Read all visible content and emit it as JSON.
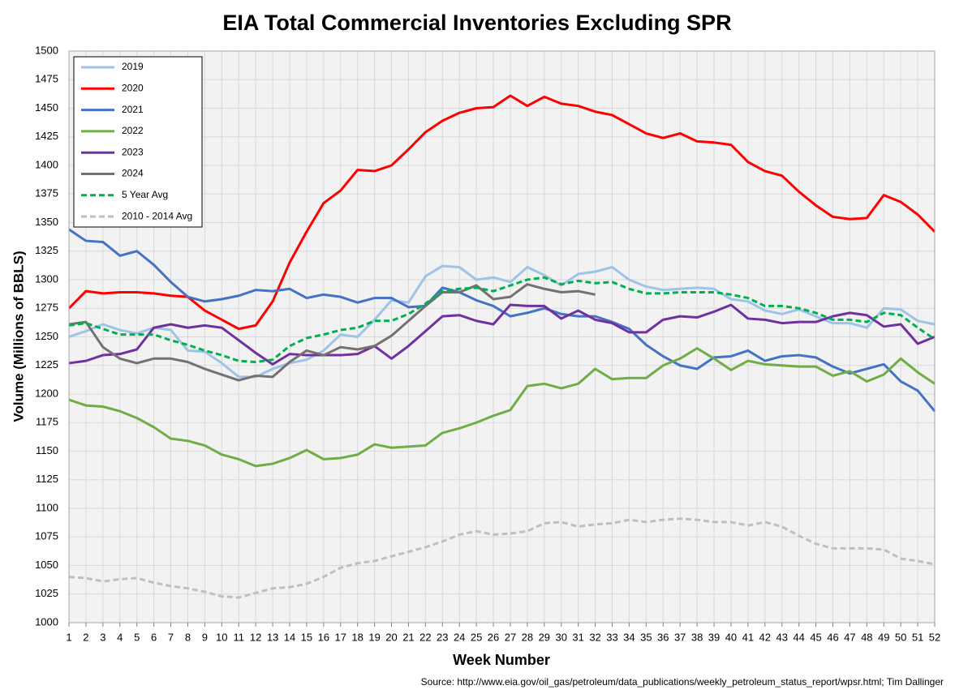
{
  "chart_data": {
    "type": "line",
    "title": "EIA Total Commercial Inventories Excluding SPR",
    "xlabel": "Week Number",
    "ylabel": "Volume (Millions of BBLS)",
    "source": "Source: http://www.eia.gov/oil_gas/petroleum/data_publications/weekly_petroleum_status_report/wpsr.html; Tim Dallinger",
    "x": [
      1,
      2,
      3,
      4,
      5,
      6,
      7,
      8,
      9,
      10,
      11,
      12,
      13,
      14,
      15,
      16,
      17,
      18,
      19,
      20,
      21,
      22,
      23,
      24,
      25,
      26,
      27,
      28,
      29,
      30,
      31,
      32,
      33,
      34,
      35,
      36,
      37,
      38,
      39,
      40,
      41,
      42,
      43,
      44,
      45,
      46,
      47,
      48,
      49,
      50,
      51,
      52
    ],
    "xlim": [
      1,
      52
    ],
    "xticks": [
      1,
      2,
      3,
      4,
      5,
      6,
      7,
      8,
      9,
      10,
      11,
      12,
      13,
      14,
      15,
      16,
      17,
      18,
      19,
      20,
      21,
      22,
      23,
      24,
      25,
      26,
      27,
      28,
      29,
      30,
      31,
      32,
      33,
      34,
      35,
      36,
      37,
      38,
      39,
      40,
      41,
      42,
      43,
      44,
      45,
      46,
      47,
      48,
      49,
      50,
      51,
      52
    ],
    "ylim": [
      1000,
      1500
    ],
    "yticks": [
      1000,
      1025,
      1050,
      1075,
      1100,
      1125,
      1150,
      1175,
      1200,
      1225,
      1250,
      1275,
      1300,
      1325,
      1350,
      1375,
      1400,
      1425,
      1450,
      1475,
      1500
    ],
    "grid": true,
    "legend": "upper left",
    "series": [
      {
        "name": "2019",
        "color": "#9dc3e6",
        "dashed": false,
        "values": [
          1250,
          1255,
          1261,
          1256,
          1253,
          1258,
          1256,
          1238,
          1237,
          1227,
          1215,
          1215,
          1222,
          1227,
          1230,
          1238,
          1252,
          1250,
          1265,
          1282,
          1280,
          1303,
          1312,
          1311,
          1300,
          1302,
          1298,
          1311,
          1304,
          1295,
          1305,
          1307,
          1311,
          1300,
          1294,
          1291,
          1292,
          1293,
          1292,
          1283,
          1281,
          1273,
          1270,
          1274,
          1268,
          1262,
          1262,
          1258,
          1275,
          1274,
          1264,
          1261
        ]
      },
      {
        "name": "2020",
        "color": "#ff0000",
        "dashed": false,
        "values": [
          1275,
          1290,
          1288,
          1289,
          1289,
          1288,
          1286,
          1285,
          1273,
          1265,
          1257,
          1260,
          1281,
          1315,
          1342,
          1367,
          1378,
          1396,
          1395,
          1400,
          1414,
          1429,
          1439,
          1446,
          1450,
          1451,
          1461,
          1452,
          1460,
          1454,
          1452,
          1447,
          1444,
          1436,
          1428,
          1424,
          1428,
          1421,
          1420,
          1418,
          1403,
          1395,
          1391,
          1377,
          1365,
          1355,
          1353,
          1354,
          1374,
          1368,
          1357,
          1342
        ]
      },
      {
        "name": "2021",
        "color": "#4472c4",
        "dashed": false,
        "values": [
          1344,
          1334,
          1333,
          1321,
          1325,
          1313,
          1298,
          1285,
          1281,
          1283,
          1286,
          1291,
          1290,
          1292,
          1284,
          1287,
          1285,
          1280,
          1284,
          1284,
          1276,
          1277,
          1293,
          1289,
          1282,
          1277,
          1268,
          1271,
          1275,
          1270,
          1268,
          1268,
          1263,
          1257,
          1243,
          1233,
          1225,
          1222,
          1232,
          1233,
          1238,
          1229,
          1233,
          1234,
          1232,
          1224,
          1218,
          1222,
          1226,
          1211,
          1203,
          1185
        ]
      },
      {
        "name": "2022",
        "color": "#70ad47",
        "dashed": false,
        "values": [
          1195,
          1190,
          1189,
          1185,
          1179,
          1171,
          1161,
          1159,
          1155,
          1147,
          1143,
          1137,
          1139,
          1144,
          1151,
          1143,
          1144,
          1147,
          1156,
          1153,
          1154,
          1155,
          1166,
          1170,
          1175,
          1181,
          1186,
          1207,
          1209,
          1205,
          1209,
          1222,
          1213,
          1214,
          1214,
          1225,
          1231,
          1240,
          1231,
          1221,
          1229,
          1226,
          1225,
          1224,
          1224,
          1216,
          1220,
          1211,
          1217,
          1231,
          1219,
          1209
        ]
      },
      {
        "name": "2023",
        "color": "#7030a0",
        "dashed": false,
        "values": [
          1227,
          1229,
          1234,
          1235,
          1239,
          1258,
          1261,
          1258,
          1260,
          1258,
          1247,
          1236,
          1226,
          1235,
          1234,
          1234,
          1234,
          1235,
          1242,
          1231,
          1242,
          1255,
          1268,
          1269,
          1264,
          1261,
          1278,
          1277,
          1277,
          1266,
          1273,
          1265,
          1262,
          1254,
          1254,
          1265,
          1268,
          1267,
          1272,
          1278,
          1266,
          1265,
          1262,
          1263,
          1263,
          1268,
          1271,
          1269,
          1259,
          1261,
          1244,
          1250
        ]
      },
      {
        "name": "2024",
        "color": "#767171",
        "dashed": false,
        "values": [
          1261,
          1263,
          1241,
          1231,
          1227,
          1231,
          1231,
          1228,
          1222,
          1217,
          1212,
          1216,
          1215,
          1228,
          1238,
          1234,
          1241,
          1239,
          1242,
          1251,
          1264,
          1277,
          1289,
          1289,
          1295,
          1283,
          1285,
          1296,
          1292,
          1289,
          1290,
          1287,
          null,
          null,
          null,
          null,
          null,
          null,
          null,
          null,
          null,
          null,
          null,
          null,
          null,
          null,
          null,
          null,
          null,
          null,
          null,
          null
        ]
      },
      {
        "name": "5 Year Avg",
        "color": "#00b050",
        "dashed": true,
        "values": [
          1260,
          1262,
          1257,
          1252,
          1252,
          1252,
          1247,
          1243,
          1238,
          1234,
          1229,
          1228,
          1230,
          1242,
          1249,
          1252,
          1256,
          1258,
          1264,
          1264,
          1270,
          1279,
          1290,
          1292,
          1293,
          1290,
          1295,
          1300,
          1302,
          1296,
          1299,
          1297,
          1298,
          1292,
          1288,
          1288,
          1289,
          1289,
          1289,
          1287,
          1284,
          1277,
          1277,
          1275,
          1271,
          1265,
          1265,
          1263,
          1271,
          1269,
          1258,
          1248
        ]
      },
      {
        "name": "2010 - 2014 Avg",
        "color": "#bfbfbf",
        "dashed": true,
        "values": [
          1040,
          1039,
          1036,
          1038,
          1039,
          1035,
          1032,
          1030,
          1027,
          1023,
          1022,
          1026,
          1030,
          1031,
          1034,
          1040,
          1048,
          1052,
          1054,
          1058,
          1062,
          1066,
          1071,
          1077,
          1080,
          1077,
          1078,
          1080,
          1087,
          1088,
          1084,
          1086,
          1087,
          1090,
          1088,
          1090,
          1091,
          1090,
          1088,
          1088,
          1085,
          1088,
          1084,
          1076,
          1069,
          1065,
          1065,
          1065,
          1064,
          1056,
          1054,
          1051
        ]
      }
    ]
  }
}
